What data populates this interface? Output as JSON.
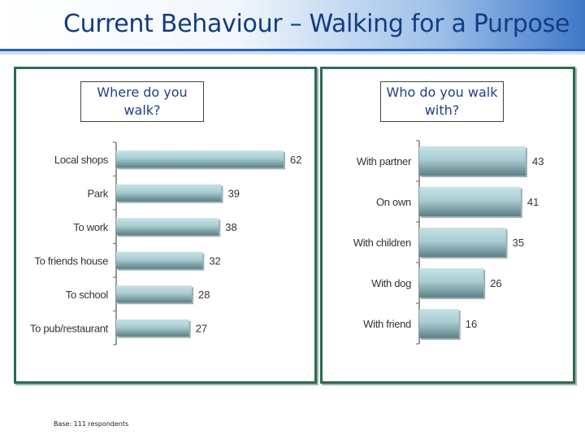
{
  "header": {
    "title": "Current Behaviour – Walking for a Purpose"
  },
  "footnote": "Base: 111 respondents",
  "colors": {
    "bar_light": "#c6e2e6",
    "bar_dark": "#5c8086",
    "panel_border": "#2e6a4f",
    "title_text": "#1f3f8a"
  },
  "chart_data": [
    {
      "type": "bar",
      "orientation": "horizontal",
      "title": "Where do you walk?",
      "categories": [
        "Local shops",
        "Park",
        "To work",
        "To friends house",
        "To school",
        "To pub/restaurant"
      ],
      "values": [
        62,
        39,
        38,
        32,
        28,
        27
      ],
      "xlim": [
        0,
        62
      ],
      "grid": false
    },
    {
      "type": "bar",
      "orientation": "horizontal",
      "title": "Who do you walk with?",
      "categories": [
        "With partner",
        "On own",
        "With children",
        "With dog",
        "With friend"
      ],
      "values": [
        43,
        41,
        35,
        26,
        16
      ],
      "xlim": [
        0,
        43
      ],
      "grid": false
    }
  ]
}
